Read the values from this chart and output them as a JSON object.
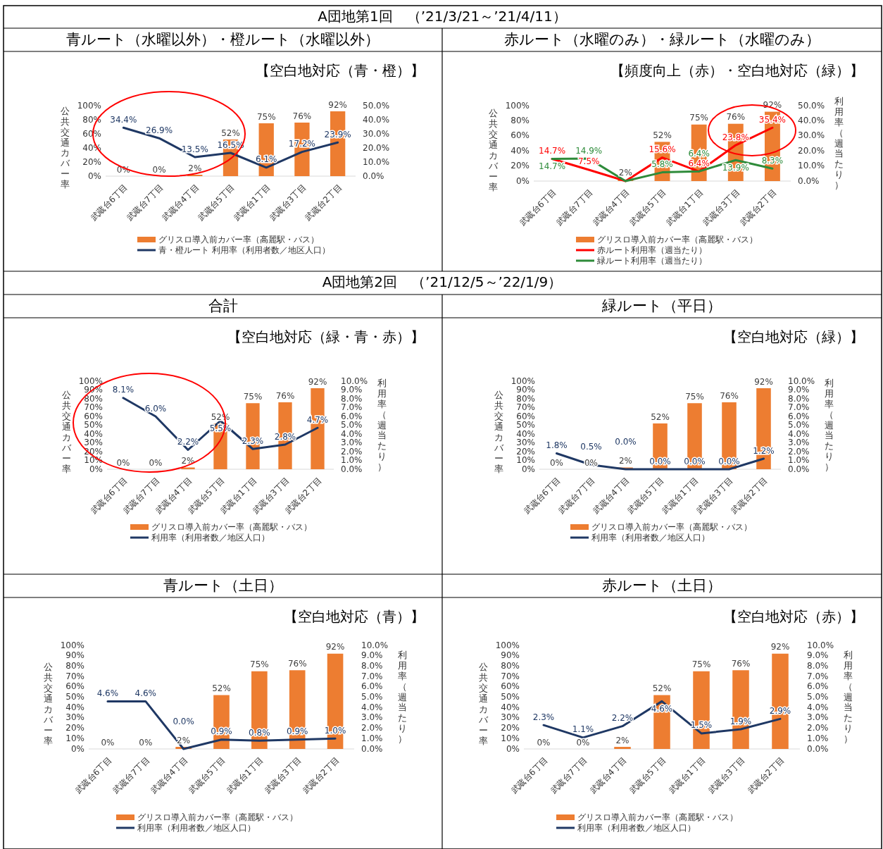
{
  "chart_data": [
    {
      "type": "bar",
      "annotations": [
        "A団地第1回　（’21/3/21～’21/4/11）"
      ],
      "subtitle": "青ルート（水曜以外）・橙ルート（水曜以外）",
      "title": "【空白地対応（青・橙）】",
      "ylabel": "公共交通カバー率",
      "categories": [
        "武蔵台6丁目",
        "武蔵台7丁目",
        "武蔵台4丁目",
        "武蔵台5丁目",
        "武蔵台1丁目",
        "武蔵台3丁目",
        "武蔵台2丁目"
      ],
      "ylim": [
        0,
        100
      ],
      "yticks": [
        {
          "value": 0,
          "label": "0%"
        },
        {
          "value": 20,
          "label": "20%"
        },
        {
          "value": 40,
          "label": "40%"
        },
        {
          "value": 60,
          "label": "60%"
        },
        {
          "value": 80,
          "label": "80%"
        },
        {
          "value": 100,
          "label": "100%"
        }
      ],
      "y2lim": [
        0,
        50
      ],
      "y2ticks": [
        {
          "value": 0,
          "label": "0.0%"
        },
        {
          "value": 10,
          "label": "10.0%"
        },
        {
          "value": 20,
          "label": "20.0%"
        },
        {
          "value": 30,
          "label": "30.0%"
        },
        {
          "value": 40,
          "label": "40.0%"
        },
        {
          "value": 50,
          "label": "50.0%"
        }
      ],
      "legend": "bottom",
      "series": [
        {
          "name": "グリスロ導入前カバー率（高麗駅・バス）",
          "color": "#ed7d31",
          "values": [
            0,
            0,
            2,
            52,
            75,
            76,
            92
          ],
          "value_labels": [
            "0%",
            "0%",
            "2%",
            "52%",
            "75%",
            "76%",
            "92%"
          ]
        },
        {
          "name": "青・橙ルート 利用率（利用者数／地区人口）",
          "type": "line",
          "axis": "y2",
          "color": "#1f3864",
          "values": [
            34.4,
            26.9,
            13.5,
            16.5,
            6.1,
            17.2,
            23.9
          ],
          "value_labels": [
            "34.4%",
            "26.9%",
            "13.5%",
            "16.5%",
            "6.1%",
            "17.2%",
            "23.9%"
          ]
        }
      ]
    },
    {
      "type": "bar",
      "subtitle": "赤ルート（水曜のみ）・緑ルート（水曜のみ）",
      "title": "【頻度向上（赤）・空白地対応（緑）】",
      "ylabel": "公共交通カバー率",
      "y2label": "利用率（週当たり）",
      "categories": [
        "武蔵台6丁目",
        "武蔵台7丁目",
        "武蔵台4丁目",
        "武蔵台5丁目",
        "武蔵台1丁目",
        "武蔵台3丁目",
        "武蔵台2丁目"
      ],
      "ylim": [
        0,
        100
      ],
      "yticks": [
        {
          "value": 0,
          "label": "0%"
        },
        {
          "value": 20,
          "label": "20%"
        },
        {
          "value": 40,
          "label": "40%"
        },
        {
          "value": 60,
          "label": "60%"
        },
        {
          "value": 80,
          "label": "80%"
        },
        {
          "value": 100,
          "label": "100%"
        }
      ],
      "y2lim": [
        0,
        50
      ],
      "y2ticks": [
        {
          "value": 0,
          "label": "0.0%"
        },
        {
          "value": 10,
          "label": "10.0%"
        },
        {
          "value": 20,
          "label": "20.0%"
        },
        {
          "value": 30,
          "label": "30.0%"
        },
        {
          "value": 40,
          "label": "40.0%"
        },
        {
          "value": 50,
          "label": "50.0%"
        }
      ],
      "legend": "bottom",
      "series": [
        {
          "name": "グリスロ導入前カバー率（高麗駅・バス）",
          "color": "#ed7d31",
          "values": [
            0,
            0,
            2,
            52,
            75,
            76,
            92
          ],
          "value_labels": [
            null,
            null,
            "2%",
            "52%",
            "75%",
            "76%",
            "92%"
          ]
        },
        {
          "name": "赤ルート利用率（週当たり）",
          "type": "line",
          "axis": "y2",
          "color": "#ff0000",
          "values": [
            14.7,
            7.5,
            0,
            15.6,
            6.4,
            23.8,
            35.4
          ],
          "value_labels": [
            "14.7%",
            "7.5%",
            null,
            "15.6%",
            "6.4%",
            "23.8%",
            "35.4%"
          ]
        },
        {
          "name": "緑ルート利用率（週当たり）",
          "type": "line",
          "axis": "y2",
          "color": "#2e8b3a",
          "values": [
            14.7,
            14.9,
            0,
            5.8,
            6.4,
            13.9,
            8.3
          ],
          "value_labels": [
            "14.7%",
            "14.9%",
            null,
            "5.8%",
            "6.4%",
            "13.9%",
            "8.3%"
          ]
        }
      ]
    },
    {
      "type": "bar",
      "annotations": [
        "A団地第2回　（’21/12/5～’22/1/9）"
      ],
      "subtitle": "合計",
      "title": "【空白地対応（緑・青・赤）】",
      "ylabel": "公共交通カバー率",
      "y2label": "利用率（週当たり）",
      "categories": [
        "武蔵台6丁目",
        "武蔵台7丁目",
        "武蔵台4丁目",
        "武蔵台5丁目",
        "武蔵台1丁目",
        "武蔵台3丁目",
        "武蔵台2丁目"
      ],
      "ylim": [
        0,
        100
      ],
      "yticks": [
        {
          "value": 0,
          "label": "0%"
        },
        {
          "value": 10,
          "label": "10%"
        },
        {
          "value": 20,
          "label": "20%"
        },
        {
          "value": 30,
          "label": "30%"
        },
        {
          "value": 40,
          "label": "40%"
        },
        {
          "value": 50,
          "label": "50%"
        },
        {
          "value": 60,
          "label": "60%"
        },
        {
          "value": 70,
          "label": "70%"
        },
        {
          "value": 80,
          "label": "80%"
        },
        {
          "value": 90,
          "label": "90%"
        },
        {
          "value": 100,
          "label": "100%"
        }
      ],
      "y2lim": [
        0,
        10
      ],
      "y2ticks": [
        {
          "value": 0,
          "label": "0.0%"
        },
        {
          "value": 1,
          "label": "1.0%"
        },
        {
          "value": 2,
          "label": "2.0%"
        },
        {
          "value": 3,
          "label": "3.0%"
        },
        {
          "value": 4,
          "label": "4.0%"
        },
        {
          "value": 5,
          "label": "5.0%"
        },
        {
          "value": 6,
          "label": "6.0%"
        },
        {
          "value": 7,
          "label": "7.0%"
        },
        {
          "value": 8,
          "label": "8.0%"
        },
        {
          "value": 9,
          "label": "9.0%"
        },
        {
          "value": 10,
          "label": "10.0%"
        }
      ],
      "legend": "bottom",
      "series": [
        {
          "name": "グリスロ導入前カバー率（高麗駅・バス）",
          "color": "#ed7d31",
          "values": [
            0,
            0,
            2,
            52,
            75,
            76,
            92
          ],
          "value_labels": [
            "0%",
            "0%",
            "2%",
            "52%",
            "75%",
            "76%",
            "92%"
          ]
        },
        {
          "name": "利用率（利用者数／地区人口）",
          "type": "line",
          "axis": "y2",
          "color": "#1f3864",
          "values": [
            8.1,
            6.0,
            2.2,
            5.5,
            2.3,
            2.8,
            4.7
          ],
          "value_labels": [
            "8.1%",
            "6.0%",
            "2.2%",
            "5.5%",
            "2.3%",
            "2.8%",
            "4.7%"
          ]
        }
      ]
    },
    {
      "type": "bar",
      "subtitle": "緑ルート（平日）",
      "title": "【空白地対応（緑）】",
      "ylabel": "公共交通カバー率",
      "y2label": "利用率（週当たり）",
      "categories": [
        "武蔵台6丁目",
        "武蔵台7丁目",
        "武蔵台4丁目",
        "武蔵台5丁目",
        "武蔵台1丁目",
        "武蔵台3丁目",
        "武蔵台2丁目"
      ],
      "ylim": [
        0,
        100
      ],
      "yticks": [
        {
          "value": 0,
          "label": "0%"
        },
        {
          "value": 10,
          "label": "10%"
        },
        {
          "value": 20,
          "label": "20%"
        },
        {
          "value": 30,
          "label": "30%"
        },
        {
          "value": 40,
          "label": "40%"
        },
        {
          "value": 50,
          "label": "50%"
        },
        {
          "value": 60,
          "label": "60%"
        },
        {
          "value": 70,
          "label": "70%"
        },
        {
          "value": 80,
          "label": "80%"
        },
        {
          "value": 90,
          "label": "90%"
        },
        {
          "value": 100,
          "label": "100%"
        }
      ],
      "y2lim": [
        0,
        10
      ],
      "y2ticks": [
        {
          "value": 0,
          "label": "0.0%"
        },
        {
          "value": 1,
          "label": "1.0%"
        },
        {
          "value": 2,
          "label": "2.0%"
        },
        {
          "value": 3,
          "label": "3.0%"
        },
        {
          "value": 4,
          "label": "4.0%"
        },
        {
          "value": 5,
          "label": "5.0%"
        },
        {
          "value": 6,
          "label": "6.0%"
        },
        {
          "value": 7,
          "label": "7.0%"
        },
        {
          "value": 8,
          "label": "8.0%"
        },
        {
          "value": 9,
          "label": "9.0%"
        },
        {
          "value": 10,
          "label": "10.0%"
        }
      ],
      "legend": "bottom",
      "series": [
        {
          "name": "グリスロ導入前カバー率（高麗駅・バス）",
          "color": "#ed7d31",
          "values": [
            0,
            0,
            2,
            52,
            75,
            76,
            92
          ],
          "value_labels": [
            "0%",
            "0%",
            "2%",
            "52%",
            "75%",
            "76%",
            "92%"
          ]
        },
        {
          "name": "利用率（利用者数／地区人口）",
          "type": "line",
          "axis": "y2",
          "color": "#1f3864",
          "values": [
            1.8,
            0.5,
            0.0,
            0.0,
            0.0,
            0.0,
            1.2
          ],
          "value_labels": [
            "1.8%",
            "0.5%",
            "0.0%",
            "0.0%",
            "0.0%",
            "0.0%",
            "1.2%"
          ]
        }
      ]
    },
    {
      "type": "bar",
      "subtitle": "青ルート（土日）",
      "title": "【空白地対応（青）】",
      "ylabel": "公共交通カバー率",
      "y2label": "利用率（週当たり）",
      "categories": [
        "武蔵台6丁目",
        "武蔵台7丁目",
        "武蔵台4丁目",
        "武蔵台5丁目",
        "武蔵台1丁目",
        "武蔵台3丁目",
        "武蔵台2丁目"
      ],
      "ylim": [
        0,
        100
      ],
      "yticks": [
        {
          "value": 0,
          "label": "0%"
        },
        {
          "value": 10,
          "label": "10%"
        },
        {
          "value": 20,
          "label": "20%"
        },
        {
          "value": 30,
          "label": "30%"
        },
        {
          "value": 40,
          "label": "40%"
        },
        {
          "value": 50,
          "label": "50%"
        },
        {
          "value": 60,
          "label": "60%"
        },
        {
          "value": 70,
          "label": "70%"
        },
        {
          "value": 80,
          "label": "80%"
        },
        {
          "value": 90,
          "label": "90%"
        },
        {
          "value": 100,
          "label": "100%"
        }
      ],
      "y2lim": [
        0,
        10
      ],
      "y2ticks": [
        {
          "value": 0,
          "label": "0.0%"
        },
        {
          "value": 1,
          "label": "1.0%"
        },
        {
          "value": 2,
          "label": "2.0%"
        },
        {
          "value": 3,
          "label": "3.0%"
        },
        {
          "value": 4,
          "label": "4.0%"
        },
        {
          "value": 5,
          "label": "5.0%"
        },
        {
          "value": 6,
          "label": "6.0%"
        },
        {
          "value": 7,
          "label": "7.0%"
        },
        {
          "value": 8,
          "label": "8.0%"
        },
        {
          "value": 9,
          "label": "9.0%"
        },
        {
          "value": 10,
          "label": "10.0%"
        }
      ],
      "legend": "bottom",
      "series": [
        {
          "name": "グリスロ導入前カバー率（高麗駅・バス）",
          "color": "#ed7d31",
          "values": [
            0,
            0,
            2,
            52,
            75,
            76,
            92
          ],
          "value_labels": [
            "0%",
            "0%",
            "2%",
            "52%",
            "75%",
            "76%",
            "92%"
          ]
        },
        {
          "name": "利用率（利用者数／地区人口）",
          "type": "line",
          "axis": "y2",
          "color": "#1f3864",
          "values": [
            4.6,
            4.6,
            0.0,
            0.9,
            0.8,
            0.9,
            1.0
          ],
          "value_labels": [
            "4.6%",
            "4.6%",
            "0.0%",
            "0.9%",
            "0.8%",
            "0.9%",
            "1.0%"
          ]
        }
      ]
    },
    {
      "type": "bar",
      "subtitle": "赤ルート（土日）",
      "title": "【空白地対応（赤）】",
      "ylabel": "公共交通カバー率",
      "y2label": "利用率（週当たり）",
      "categories": [
        "武蔵台6丁目",
        "武蔵台7丁目",
        "武蔵台4丁目",
        "武蔵台5丁目",
        "武蔵台1丁目",
        "武蔵台3丁目",
        "武蔵台2丁目"
      ],
      "ylim": [
        0,
        100
      ],
      "yticks": [
        {
          "value": 0,
          "label": "0%"
        },
        {
          "value": 10,
          "label": "10%"
        },
        {
          "value": 20,
          "label": "20%"
        },
        {
          "value": 30,
          "label": "30%"
        },
        {
          "value": 40,
          "label": "40%"
        },
        {
          "value": 50,
          "label": "50%"
        },
        {
          "value": 60,
          "label": "60%"
        },
        {
          "value": 70,
          "label": "70%"
        },
        {
          "value": 80,
          "label": "80%"
        },
        {
          "value": 90,
          "label": "90%"
        },
        {
          "value": 100,
          "label": "100%"
        }
      ],
      "y2lim": [
        0,
        10
      ],
      "y2ticks": [
        {
          "value": 0,
          "label": "0.0%"
        },
        {
          "value": 1,
          "label": "1.0%"
        },
        {
          "value": 2,
          "label": "2.0%"
        },
        {
          "value": 3,
          "label": "3.0%"
        },
        {
          "value": 4,
          "label": "4.0%"
        },
        {
          "value": 5,
          "label": "5.0%"
        },
        {
          "value": 6,
          "label": "6.0%"
        },
        {
          "value": 7,
          "label": "7.0%"
        },
        {
          "value": 8,
          "label": "8.0%"
        },
        {
          "value": 9,
          "label": "9.0%"
        },
        {
          "value": 10,
          "label": "10.0%"
        }
      ],
      "legend": "bottom",
      "series": [
        {
          "name": "グリスロ導入前カバー率（高麗駅・バス）",
          "color": "#ed7d31",
          "values": [
            0,
            0,
            2,
            52,
            75,
            76,
            92
          ],
          "value_labels": [
            "0%",
            "0%",
            "2%",
            "52%",
            "75%",
            "76%",
            "92%"
          ]
        },
        {
          "name": "利用率（利用者数／地区人口）",
          "type": "line",
          "axis": "y2",
          "color": "#1f3864",
          "values": [
            2.3,
            1.1,
            2.2,
            4.6,
            1.5,
            1.9,
            2.9
          ],
          "value_labels": [
            "2.3%",
            "1.1%",
            "2.2%",
            "4.6%",
            "1.5%",
            "1.9%",
            "2.9%"
          ]
        }
      ]
    }
  ]
}
